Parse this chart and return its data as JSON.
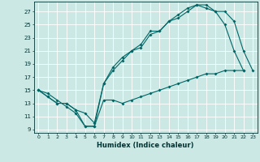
{
  "xlabel": "Humidex (Indice chaleur)",
  "bg_color": "#cce8e4",
  "grid_color": "#ffffff",
  "line_color": "#006666",
  "xlim": [
    -0.5,
    23.5
  ],
  "ylim": [
    8.5,
    28.5
  ],
  "xticks": [
    0,
    1,
    2,
    3,
    4,
    5,
    6,
    7,
    8,
    9,
    10,
    11,
    12,
    13,
    14,
    15,
    16,
    17,
    18,
    19,
    20,
    21,
    22,
    23
  ],
  "yticks": [
    9,
    11,
    13,
    15,
    17,
    19,
    21,
    23,
    25,
    27
  ],
  "line1_x": [
    0,
    1,
    2,
    3,
    4,
    5,
    6,
    7,
    8,
    9,
    10,
    11,
    12,
    13,
    14,
    15,
    16,
    17,
    18,
    19,
    20,
    21,
    22,
    23
  ],
  "line1_y": [
    15,
    14,
    13,
    13,
    12,
    11.5,
    10,
    16,
    18,
    19.5,
    21,
    21.5,
    23.5,
    24,
    25.5,
    26.5,
    27.5,
    28,
    27.5,
    27,
    25,
    21,
    18,
    null
  ],
  "line2_x": [
    0,
    1,
    2,
    3,
    4,
    5,
    6,
    7,
    8,
    9,
    10,
    11,
    12,
    13,
    14,
    15,
    16,
    17,
    18,
    19,
    20,
    21,
    22,
    23
  ],
  "line2_y": [
    15,
    14,
    13,
    13,
    12,
    9.5,
    9.5,
    16,
    18.5,
    20,
    21,
    22,
    24,
    24,
    25.5,
    26,
    27,
    28,
    28,
    27,
    27,
    25.5,
    21,
    18
  ],
  "line3_x": [
    0,
    1,
    2,
    3,
    4,
    5,
    6,
    7,
    8,
    9,
    10,
    11,
    12,
    13,
    14,
    15,
    16,
    17,
    18,
    19,
    20,
    21,
    22,
    23
  ],
  "line3_y": [
    15,
    14.5,
    13.5,
    12.5,
    11.5,
    9.5,
    9.5,
    13.5,
    13.5,
    13,
    13.5,
    14,
    14.5,
    15,
    15.5,
    16,
    16.5,
    17,
    17.5,
    17.5,
    18,
    18,
    18,
    null
  ]
}
